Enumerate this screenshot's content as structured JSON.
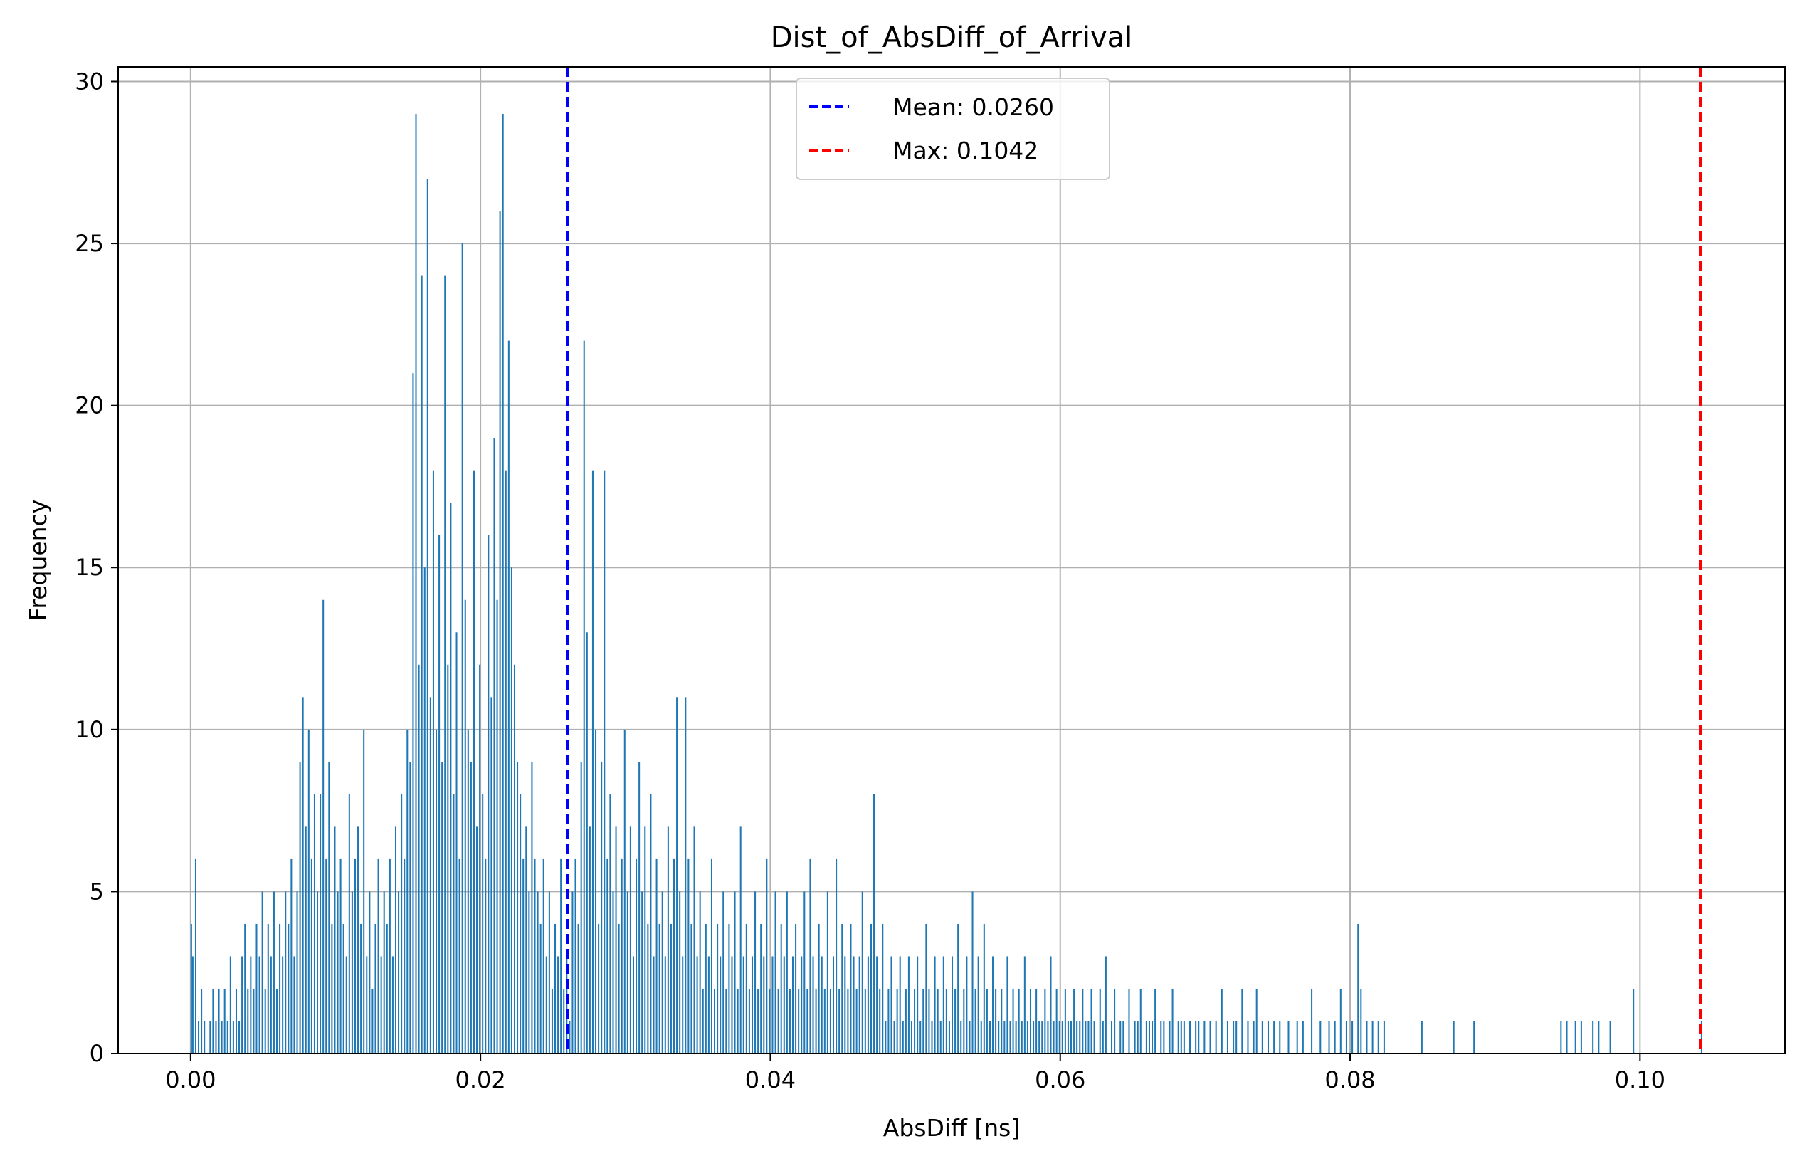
{
  "chart_data": {
    "type": "bar",
    "title": "Dist_of_AbsDiff_of_Arrival",
    "xlabel": "AbsDiff [ns]",
    "ylabel": "Frequency",
    "xlim": [
      -0.005,
      0.11
    ],
    "ylim": [
      0,
      30.45
    ],
    "xticks": [
      "0.00",
      "0.02",
      "0.04",
      "0.06",
      "0.08",
      "0.10"
    ],
    "yticks": [
      "0",
      "5",
      "10",
      "15",
      "20",
      "25",
      "30"
    ],
    "grid": true,
    "legend_position": "upper-center",
    "bar_color": "#1f77b4",
    "bin_width": 0.0001,
    "bins": [
      [
        0.0,
        4
      ],
      [
        0.0001,
        3
      ],
      [
        0.0003,
        6
      ],
      [
        0.0005,
        1
      ],
      [
        0.0007,
        2
      ],
      [
        0.0009,
        1
      ],
      [
        0.0013,
        1
      ],
      [
        0.0015,
        2
      ],
      [
        0.0017,
        1
      ],
      [
        0.0019,
        2
      ],
      [
        0.0021,
        1
      ],
      [
        0.0023,
        2
      ],
      [
        0.0025,
        1
      ],
      [
        0.0027,
        3
      ],
      [
        0.0029,
        1
      ],
      [
        0.0031,
        2
      ],
      [
        0.0033,
        1
      ],
      [
        0.0035,
        3
      ],
      [
        0.0037,
        4
      ],
      [
        0.0039,
        2
      ],
      [
        0.0041,
        3
      ],
      [
        0.0043,
        2
      ],
      [
        0.0045,
        4
      ],
      [
        0.0047,
        3
      ],
      [
        0.0049,
        5
      ],
      [
        0.0051,
        2
      ],
      [
        0.0053,
        4
      ],
      [
        0.0055,
        3
      ],
      [
        0.0057,
        5
      ],
      [
        0.0059,
        2
      ],
      [
        0.0061,
        4
      ],
      [
        0.0063,
        3
      ],
      [
        0.0065,
        5
      ],
      [
        0.0067,
        4
      ],
      [
        0.0069,
        6
      ],
      [
        0.0071,
        3
      ],
      [
        0.0073,
        5
      ],
      [
        0.0075,
        9
      ],
      [
        0.0077,
        11
      ],
      [
        0.0079,
        7
      ],
      [
        0.0081,
        10
      ],
      [
        0.0083,
        6
      ],
      [
        0.0085,
        8
      ],
      [
        0.0087,
        5
      ],
      [
        0.0089,
        8
      ],
      [
        0.0091,
        14
      ],
      [
        0.0093,
        6
      ],
      [
        0.0095,
        9
      ],
      [
        0.0097,
        4
      ],
      [
        0.0099,
        7
      ],
      [
        0.0101,
        5
      ],
      [
        0.0103,
        6
      ],
      [
        0.0105,
        4
      ],
      [
        0.0107,
        3
      ],
      [
        0.0109,
        8
      ],
      [
        0.0111,
        5
      ],
      [
        0.0113,
        6
      ],
      [
        0.0115,
        7
      ],
      [
        0.0117,
        4
      ],
      [
        0.0119,
        10
      ],
      [
        0.0121,
        3
      ],
      [
        0.0123,
        5
      ],
      [
        0.0125,
        2
      ],
      [
        0.0127,
        4
      ],
      [
        0.0129,
        6
      ],
      [
        0.0131,
        3
      ],
      [
        0.0133,
        5
      ],
      [
        0.0135,
        4
      ],
      [
        0.0137,
        6
      ],
      [
        0.0139,
        3
      ],
      [
        0.0141,
        7
      ],
      [
        0.0143,
        5
      ],
      [
        0.0145,
        8
      ],
      [
        0.0147,
        6
      ],
      [
        0.0149,
        10
      ],
      [
        0.0151,
        9
      ],
      [
        0.0153,
        21
      ],
      [
        0.0155,
        29
      ],
      [
        0.0157,
        12
      ],
      [
        0.0159,
        24
      ],
      [
        0.0161,
        15
      ],
      [
        0.0163,
        27
      ],
      [
        0.0165,
        11
      ],
      [
        0.0167,
        18
      ],
      [
        0.0169,
        10
      ],
      [
        0.0171,
        16
      ],
      [
        0.0173,
        9
      ],
      [
        0.0175,
        24
      ],
      [
        0.0177,
        12
      ],
      [
        0.0179,
        17
      ],
      [
        0.0181,
        8
      ],
      [
        0.0183,
        13
      ],
      [
        0.0185,
        6
      ],
      [
        0.0187,
        25
      ],
      [
        0.0189,
        14
      ],
      [
        0.0191,
        10
      ],
      [
        0.0193,
        9
      ],
      [
        0.0195,
        18
      ],
      [
        0.0197,
        7
      ],
      [
        0.0199,
        12
      ],
      [
        0.0201,
        8
      ],
      [
        0.0203,
        6
      ],
      [
        0.0205,
        16
      ],
      [
        0.0207,
        11
      ],
      [
        0.0209,
        19
      ],
      [
        0.0211,
        14
      ],
      [
        0.0213,
        26
      ],
      [
        0.0215,
        29
      ],
      [
        0.0217,
        18
      ],
      [
        0.0219,
        22
      ],
      [
        0.0221,
        15
      ],
      [
        0.0223,
        12
      ],
      [
        0.0225,
        9
      ],
      [
        0.0227,
        8
      ],
      [
        0.0229,
        6
      ],
      [
        0.0231,
        7
      ],
      [
        0.0233,
        5
      ],
      [
        0.0235,
        9
      ],
      [
        0.0237,
        6
      ],
      [
        0.0239,
        5
      ],
      [
        0.0241,
        4
      ],
      [
        0.0243,
        6
      ],
      [
        0.0245,
        3
      ],
      [
        0.0247,
        5
      ],
      [
        0.0249,
        2
      ],
      [
        0.0251,
        4
      ],
      [
        0.0253,
        3
      ],
      [
        0.0255,
        6
      ],
      [
        0.0257,
        2
      ],
      [
        0.0259,
        3
      ],
      [
        0.0261,
        1
      ],
      [
        0.0263,
        5
      ],
      [
        0.0265,
        6
      ],
      [
        0.0267,
        4
      ],
      [
        0.0269,
        9
      ],
      [
        0.0271,
        22
      ],
      [
        0.0273,
        13
      ],
      [
        0.0275,
        7
      ],
      [
        0.0277,
        18
      ],
      [
        0.0279,
        10
      ],
      [
        0.0281,
        4
      ],
      [
        0.0283,
        9
      ],
      [
        0.0285,
        18
      ],
      [
        0.0287,
        6
      ],
      [
        0.0289,
        8
      ],
      [
        0.0291,
        5
      ],
      [
        0.0293,
        7
      ],
      [
        0.0295,
        4
      ],
      [
        0.0297,
        6
      ],
      [
        0.0299,
        10
      ],
      [
        0.0301,
        5
      ],
      [
        0.0303,
        7
      ],
      [
        0.0305,
        3
      ],
      [
        0.0307,
        6
      ],
      [
        0.0309,
        9
      ],
      [
        0.0311,
        5
      ],
      [
        0.0313,
        7
      ],
      [
        0.0315,
        4
      ],
      [
        0.0317,
        8
      ],
      [
        0.0319,
        3
      ],
      [
        0.0321,
        6
      ],
      [
        0.0323,
        4
      ],
      [
        0.0325,
        5
      ],
      [
        0.0327,
        3
      ],
      [
        0.0329,
        7
      ],
      [
        0.0331,
        4
      ],
      [
        0.0333,
        6
      ],
      [
        0.0335,
        11
      ],
      [
        0.0337,
        5
      ],
      [
        0.0339,
        3
      ],
      [
        0.0341,
        11
      ],
      [
        0.0343,
        6
      ],
      [
        0.0345,
        4
      ],
      [
        0.0347,
        7
      ],
      [
        0.0349,
        3
      ],
      [
        0.0351,
        5
      ],
      [
        0.0353,
        2
      ],
      [
        0.0355,
        4
      ],
      [
        0.0357,
        3
      ],
      [
        0.0359,
        6
      ],
      [
        0.0361,
        2
      ],
      [
        0.0363,
        4
      ],
      [
        0.0365,
        3
      ],
      [
        0.0367,
        5
      ],
      [
        0.0369,
        2
      ],
      [
        0.0371,
        4
      ],
      [
        0.0373,
        3
      ],
      [
        0.0375,
        5
      ],
      [
        0.0377,
        2
      ],
      [
        0.0379,
        7
      ],
      [
        0.0381,
        3
      ],
      [
        0.0383,
        4
      ],
      [
        0.0385,
        2
      ],
      [
        0.0387,
        3
      ],
      [
        0.0389,
        5
      ],
      [
        0.0391,
        2
      ],
      [
        0.0393,
        4
      ],
      [
        0.0395,
        3
      ],
      [
        0.0397,
        6
      ],
      [
        0.0399,
        2
      ],
      [
        0.0401,
        3
      ],
      [
        0.0403,
        5
      ],
      [
        0.0405,
        2
      ],
      [
        0.0407,
        4
      ],
      [
        0.0409,
        3
      ],
      [
        0.0411,
        5
      ],
      [
        0.0413,
        2
      ],
      [
        0.0415,
        3
      ],
      [
        0.0417,
        4
      ],
      [
        0.0419,
        2
      ],
      [
        0.0421,
        3
      ],
      [
        0.0423,
        5
      ],
      [
        0.0425,
        2
      ],
      [
        0.0427,
        6
      ],
      [
        0.0429,
        3
      ],
      [
        0.0431,
        2
      ],
      [
        0.0433,
        4
      ],
      [
        0.0435,
        3
      ],
      [
        0.0437,
        2
      ],
      [
        0.0439,
        5
      ],
      [
        0.0441,
        2
      ],
      [
        0.0443,
        3
      ],
      [
        0.0445,
        6
      ],
      [
        0.0447,
        2
      ],
      [
        0.0449,
        4
      ],
      [
        0.0451,
        3
      ],
      [
        0.0453,
        2
      ],
      [
        0.0455,
        4
      ],
      [
        0.0457,
        3
      ],
      [
        0.0459,
        2
      ],
      [
        0.0461,
        3
      ],
      [
        0.0463,
        5
      ],
      [
        0.0465,
        2
      ],
      [
        0.0467,
        3
      ],
      [
        0.0469,
        4
      ],
      [
        0.0471,
        8
      ],
      [
        0.0473,
        3
      ],
      [
        0.0475,
        2
      ],
      [
        0.0477,
        4
      ],
      [
        0.0479,
        1
      ],
      [
        0.0481,
        2
      ],
      [
        0.0483,
        3
      ],
      [
        0.0485,
        1
      ],
      [
        0.0487,
        2
      ],
      [
        0.0489,
        3
      ],
      [
        0.0491,
        1
      ],
      [
        0.0493,
        2
      ],
      [
        0.0495,
        3
      ],
      [
        0.0497,
        1
      ],
      [
        0.0499,
        2
      ],
      [
        0.0501,
        3
      ],
      [
        0.0503,
        1
      ],
      [
        0.0505,
        2
      ],
      [
        0.0507,
        4
      ],
      [
        0.0509,
        2
      ],
      [
        0.0511,
        1
      ],
      [
        0.0513,
        3
      ],
      [
        0.0515,
        2
      ],
      [
        0.0517,
        1
      ],
      [
        0.0519,
        3
      ],
      [
        0.0521,
        2
      ],
      [
        0.0523,
        1
      ],
      [
        0.0525,
        3
      ],
      [
        0.0527,
        2
      ],
      [
        0.0529,
        4
      ],
      [
        0.0531,
        1
      ],
      [
        0.0533,
        2
      ],
      [
        0.0535,
        3
      ],
      [
        0.0537,
        1
      ],
      [
        0.0539,
        5
      ],
      [
        0.0541,
        2
      ],
      [
        0.0543,
        3
      ],
      [
        0.0545,
        1
      ],
      [
        0.0547,
        4
      ],
      [
        0.0549,
        2
      ],
      [
        0.0551,
        1
      ],
      [
        0.0553,
        3
      ],
      [
        0.0555,
        2
      ],
      [
        0.0557,
        1
      ],
      [
        0.0559,
        2
      ],
      [
        0.0561,
        1
      ],
      [
        0.0563,
        3
      ],
      [
        0.0565,
        1
      ],
      [
        0.0567,
        2
      ],
      [
        0.0569,
        1
      ],
      [
        0.0571,
        2
      ],
      [
        0.0573,
        1
      ],
      [
        0.0575,
        3
      ],
      [
        0.0577,
        1
      ],
      [
        0.0579,
        2
      ],
      [
        0.0581,
        1
      ],
      [
        0.0583,
        2
      ],
      [
        0.0585,
        1
      ],
      [
        0.0587,
        1
      ],
      [
        0.0589,
        2
      ],
      [
        0.0591,
        1
      ],
      [
        0.0593,
        3
      ],
      [
        0.0595,
        1
      ],
      [
        0.0597,
        2
      ],
      [
        0.0599,
        1
      ],
      [
        0.0601,
        1
      ],
      [
        0.0603,
        2
      ],
      [
        0.0605,
        1
      ],
      [
        0.0607,
        1
      ],
      [
        0.0609,
        2
      ],
      [
        0.0611,
        1
      ],
      [
        0.0613,
        1
      ],
      [
        0.0615,
        2
      ],
      [
        0.0617,
        1
      ],
      [
        0.0619,
        1
      ],
      [
        0.0621,
        2
      ],
      [
        0.0623,
        1
      ],
      [
        0.0627,
        2
      ],
      [
        0.0629,
        1
      ],
      [
        0.0631,
        3
      ],
      [
        0.0635,
        1
      ],
      [
        0.0637,
        2
      ],
      [
        0.0641,
        1
      ],
      [
        0.0643,
        1
      ],
      [
        0.0647,
        2
      ],
      [
        0.0651,
        1
      ],
      [
        0.0653,
        1
      ],
      [
        0.0655,
        2
      ],
      [
        0.0659,
        1
      ],
      [
        0.0661,
        1
      ],
      [
        0.0663,
        1
      ],
      [
        0.0665,
        2
      ],
      [
        0.0669,
        1
      ],
      [
        0.0671,
        1
      ],
      [
        0.0675,
        1
      ],
      [
        0.0677,
        2
      ],
      [
        0.0681,
        1
      ],
      [
        0.0683,
        1
      ],
      [
        0.0685,
        1
      ],
      [
        0.0689,
        1
      ],
      [
        0.0693,
        1
      ],
      [
        0.0695,
        1
      ],
      [
        0.0699,
        1
      ],
      [
        0.0703,
        1
      ],
      [
        0.0707,
        1
      ],
      [
        0.0711,
        2
      ],
      [
        0.0715,
        1
      ],
      [
        0.0719,
        1
      ],
      [
        0.0721,
        1
      ],
      [
        0.0725,
        2
      ],
      [
        0.0729,
        1
      ],
      [
        0.0733,
        1
      ],
      [
        0.0735,
        2
      ],
      [
        0.0739,
        1
      ],
      [
        0.0743,
        1
      ],
      [
        0.0747,
        1
      ],
      [
        0.0751,
        1
      ],
      [
        0.0757,
        1
      ],
      [
        0.0763,
        1
      ],
      [
        0.0767,
        1
      ],
      [
        0.0773,
        2
      ],
      [
        0.0779,
        1
      ],
      [
        0.0785,
        1
      ],
      [
        0.0789,
        1
      ],
      [
        0.0793,
        2
      ],
      [
        0.0797,
        1
      ],
      [
        0.0801,
        1
      ],
      [
        0.0805,
        4
      ],
      [
        0.0807,
        2
      ],
      [
        0.0811,
        1
      ],
      [
        0.0815,
        1
      ],
      [
        0.0819,
        1
      ],
      [
        0.0823,
        1
      ],
      [
        0.0849,
        1
      ],
      [
        0.0871,
        1
      ],
      [
        0.0885,
        1
      ],
      [
        0.0945,
        1
      ],
      [
        0.0949,
        1
      ],
      [
        0.0955,
        1
      ],
      [
        0.0959,
        1
      ],
      [
        0.0967,
        1
      ],
      [
        0.0971,
        1
      ],
      [
        0.0979,
        1
      ],
      [
        0.0995,
        2
      ],
      [
        0.1042,
        1
      ]
    ],
    "vlines": [
      {
        "label": "Mean: 0.0260",
        "x": 0.026,
        "color": "#0000ff",
        "style": "dashed"
      },
      {
        "label": "Max: 0.1042",
        "x": 0.1042,
        "color": "#ff0000",
        "style": "dashed"
      }
    ]
  }
}
